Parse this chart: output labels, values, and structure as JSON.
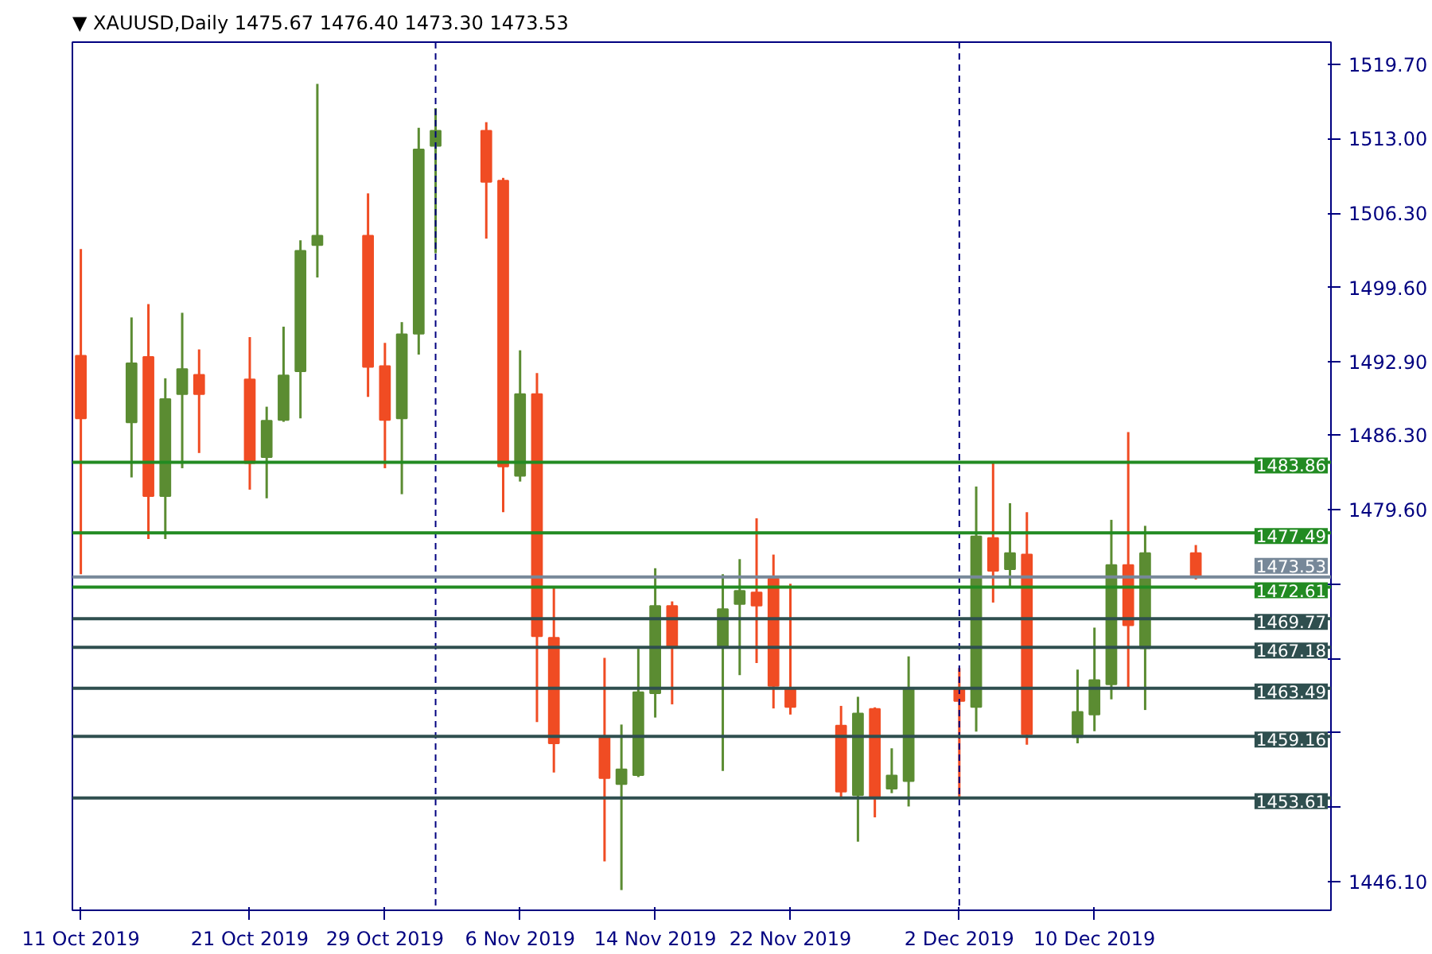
{
  "chart_data": {
    "type": "candlestick",
    "title": "▼ XAUUSD,Daily  1475.67 1476.40 1473.30 1473.53",
    "x": [
      "2019-10-11",
      "2019-10-14",
      "2019-10-15",
      "2019-10-16",
      "2019-10-17",
      "2019-10-18",
      "2019-10-21",
      "2019-10-22",
      "2019-10-23",
      "2019-10-24",
      "2019-10-25",
      "2019-10-28",
      "2019-10-29",
      "2019-10-30",
      "2019-10-31",
      "2019-11-01",
      "2019-11-04",
      "2019-11-05",
      "2019-11-06",
      "2019-11-07",
      "2019-11-08",
      "2019-11-11",
      "2019-11-12",
      "2019-11-13",
      "2019-11-14",
      "2019-11-15",
      "2019-11-18",
      "2019-11-19",
      "2019-11-20",
      "2019-11-21",
      "2019-11-22",
      "2019-11-25",
      "2019-11-26",
      "2019-11-27",
      "2019-11-28",
      "2019-11-29",
      "2019-12-02",
      "2019-12-03",
      "2019-12-04",
      "2019-12-05",
      "2019-12-06",
      "2019-12-09",
      "2019-12-10",
      "2019-12-11",
      "2019-12-12",
      "2019-12-13",
      "2019-12-16"
    ],
    "ohlc": [
      [
        1493.45,
        1503.07,
        1473.77,
        1487.81
      ],
      [
        1487.45,
        1496.9,
        1482.49,
        1492.77
      ],
      [
        1493.35,
        1498.1,
        1476.94,
        1480.81
      ],
      [
        1480.81,
        1491.42,
        1476.94,
        1489.54
      ],
      [
        1490.0,
        1497.32,
        1483.32,
        1492.25
      ],
      [
        1491.73,
        1494.02,
        1484.69,
        1490.0
      ],
      [
        1491.31,
        1495.13,
        1481.39,
        1483.79
      ],
      [
        1484.32,
        1488.86,
        1480.61,
        1487.6
      ],
      [
        1487.66,
        1496.07,
        1487.5,
        1491.68
      ],
      [
        1492.05,
        1503.85,
        1487.81,
        1502.91
      ],
      [
        1503.43,
        1517.94,
        1500.5,
        1504.26
      ],
      [
        1504.26,
        1508.07,
        1489.74,
        1492.45
      ],
      [
        1492.51,
        1494.61,
        1483.32,
        1487.66
      ],
      [
        1487.81,
        1496.48,
        1480.98,
        1495.38
      ],
      [
        1495.44,
        1513.98,
        1493.56,
        1512.04
      ],
      [
        1512.35,
        1515.75,
        1502.69,
        1513.72
      ],
      [
        1513.72,
        1514.49,
        1504.0,
        1509.12
      ],
      [
        1509.22,
        1509.48,
        1479.36,
        1483.47
      ],
      [
        1482.63,
        1493.94,
        1482.12,
        1489.99
      ],
      [
        1489.99,
        1491.9,
        1460.45,
        1468.18
      ],
      [
        1468.04,
        1472.58,
        1455.91,
        1458.54
      ],
      [
        1459.14,
        1466.23,
        1447.91,
        1455.41
      ],
      [
        1454.86,
        1460.23,
        1445.32,
        1456.19
      ],
      [
        1455.68,
        1467.05,
        1455.5,
        1463.14
      ],
      [
        1463.05,
        1474.31,
        1460.86,
        1470.91
      ],
      [
        1470.91,
        1471.32,
        1462.05,
        1467.13
      ],
      [
        1467.13,
        1473.77,
        1456.05,
        1470.63
      ],
      [
        1471.08,
        1475.13,
        1464.68,
        1472.27
      ],
      [
        1472.13,
        1478.81,
        1465.77,
        1470.95
      ],
      [
        1473.36,
        1475.54,
        1461.68,
        1463.72
      ],
      [
        1463.41,
        1472.91,
        1461.13,
        1461.82
      ],
      [
        1460.14,
        1461.91,
        1453.5,
        1454.18
      ],
      [
        1453.87,
        1462.73,
        1449.68,
        1461.23
      ],
      [
        1461.64,
        1461.78,
        1451.87,
        1453.6
      ],
      [
        1454.46,
        1458.09,
        1454.05,
        1455.64
      ],
      [
        1455.14,
        1466.37,
        1452.85,
        1463.51
      ],
      [
        1463.55,
        1465.32,
        1453.64,
        1462.36
      ],
      [
        1461.82,
        1481.67,
        1459.59,
        1477.18
      ],
      [
        1477.04,
        1483.85,
        1471.22,
        1474.08
      ],
      [
        1474.22,
        1480.17,
        1472.64,
        1475.68
      ],
      [
        1475.54,
        1479.36,
        1458.41,
        1459.36
      ],
      [
        1459.09,
        1465.18,
        1458.54,
        1461.37
      ],
      [
        1461.13,
        1468.96,
        1459.63,
        1464.23
      ],
      [
        1463.86,
        1478.67,
        1462.5,
        1474.59
      ],
      [
        1474.59,
        1486.58,
        1463.55,
        1469.18
      ],
      [
        1467.09,
        1478.13,
        1461.54,
        1475.67
      ],
      [
        1475.67,
        1476.4,
        1473.3,
        1473.53
      ]
    ],
    "colors": [
      "#f04c23",
      "#5b8c32",
      "#f04c23",
      "#5b8c32",
      "#5b8c32",
      "#f04c23",
      "#f04c23",
      "#5b8c32",
      "#5b8c32",
      "#5b8c32",
      "#5b8c32",
      "#f04c23",
      "#f04c23",
      "#5b8c32",
      "#5b8c32",
      "#5b8c32",
      "#f04c23",
      "#f04c23",
      "#5b8c32",
      "#f04c23",
      "#f04c23",
      "#f04c23",
      "#5b8c32",
      "#5b8c32",
      "#5b8c32",
      "#f04c23",
      "#5b8c32",
      "#5b8c32",
      "#f04c23",
      "#f04c23",
      "#f04c23",
      "#f04c23",
      "#5b8c32",
      "#f04c23",
      "#5b8c32",
      "#5b8c32",
      "#f04c23",
      "#5b8c32",
      "#f04c23",
      "#5b8c32",
      "#f04c23",
      "#5b8c32",
      "#5b8c32",
      "#5b8c32",
      "#f04c23",
      "#5b8c32",
      "#f04c23"
    ],
    "xlim": [
      "2019-10-10T12:00",
      "2019-12-24"
    ],
    "xticks": [
      {
        "value": "2019-10-11",
        "label": "11 Oct 2019"
      },
      {
        "value": "2019-10-21",
        "label": "21 Oct 2019"
      },
      {
        "value": "2019-10-29",
        "label": "29 Oct 2019"
      },
      {
        "value": "2019-11-06",
        "label": "6 Nov 2019"
      },
      {
        "value": "2019-11-14",
        "label": "14 Nov 2019"
      },
      {
        "value": "2019-11-22",
        "label": "22 Nov 2019"
      },
      {
        "value": "2019-12-02",
        "label": "2 Dec 2019"
      },
      {
        "value": "2019-12-10",
        "label": "10 Dec 2019"
      }
    ],
    "ylim": [
      1443.5,
      1521.7
    ],
    "yticks": [
      {
        "value": 1519.7,
        "label": "1519.70"
      },
      {
        "value": 1513.0,
        "label": "1513.00"
      },
      {
        "value": 1506.3,
        "label": "1506.30"
      },
      {
        "value": 1499.6,
        "label": "1499.60"
      },
      {
        "value": 1492.9,
        "label": "1492.90"
      },
      {
        "value": 1486.3,
        "label": "1486.30"
      },
      {
        "value": 1479.6,
        "label": "1479.60"
      },
      {
        "value": 1472.9,
        "label": null
      },
      {
        "value": 1466.2,
        "label": null
      },
      {
        "value": 1459.5,
        "label": null
      },
      {
        "value": 1452.8,
        "label": null
      },
      {
        "value": 1446.1,
        "label": "1446.10"
      }
    ],
    "ref_lines": [
      {
        "axis": "x",
        "value": "2019-11-01",
        "color": "#000080",
        "line_style": "dashed"
      },
      {
        "axis": "x",
        "value": "2019-12-02",
        "color": "#000080",
        "line_style": "dashed"
      },
      {
        "axis": "y",
        "value": 1483.86,
        "label": "1483.86",
        "color": "#228b22"
      },
      {
        "axis": "y",
        "value": 1477.49,
        "label": "1477.49",
        "color": "#228b22"
      },
      {
        "axis": "y",
        "value": 1473.53,
        "label": "1473.53",
        "color": "#778899"
      },
      {
        "axis": "y",
        "value": 1472.61,
        "label": "1472.61",
        "color": "#228b22"
      },
      {
        "axis": "y",
        "value": 1469.77,
        "label": "1469.77",
        "color": "#2f4f4f"
      },
      {
        "axis": "y",
        "value": 1467.18,
        "label": "1467.18",
        "color": "#2f4f4f"
      },
      {
        "axis": "y",
        "value": 1463.49,
        "label": "1463.49",
        "color": "#2f4f4f"
      },
      {
        "axis": "y",
        "value": 1459.16,
        "label": "1459.16",
        "color": "#2f4f4f"
      },
      {
        "axis": "y",
        "value": 1453.61,
        "label": "1453.61",
        "color": "#2f4f4f"
      }
    ],
    "grid": false
  }
}
